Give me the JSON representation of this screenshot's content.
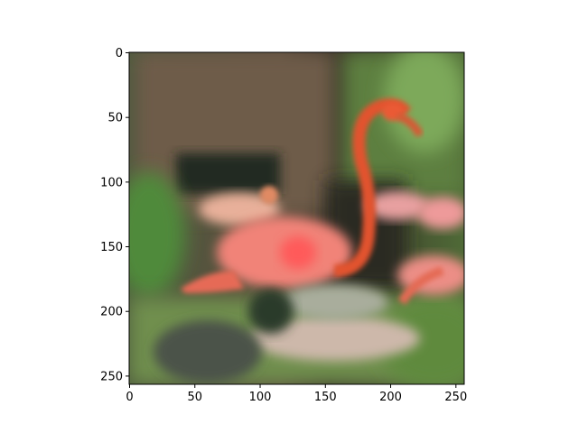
{
  "image": {
    "description_colors": {
      "flamingo": "#f07a6e",
      "neck": "#e0502e",
      "foliage": "#5f8f47",
      "wall": "#6b5a48",
      "water": "#c8b6a8"
    }
  },
  "axes": {
    "x_ticks": [
      "0",
      "50",
      "100",
      "150",
      "200",
      "250"
    ],
    "y_ticks": [
      "0",
      "50",
      "100",
      "150",
      "200",
      "250"
    ],
    "x_range": [
      0,
      256
    ],
    "y_range": [
      0,
      256
    ],
    "y_inverted": true
  }
}
